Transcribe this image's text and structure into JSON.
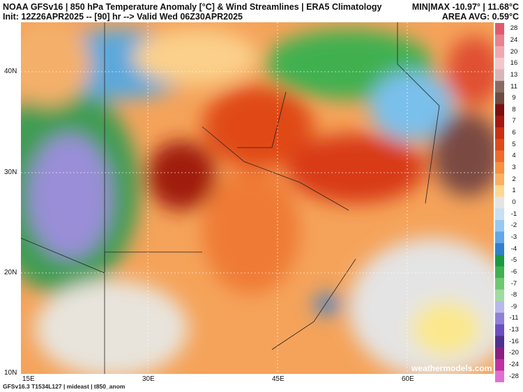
{
  "header": {
    "title_line1": "NOAA GFSv16 | 850 hPa Temperature Anomaly [°C] & Wind Streamlines | ERA5 Climatology",
    "title_line2": "Init: 12Z26APR2025 -- [90] hr --> Valid Wed 06Z30APR2025",
    "minmax": "MIN|MAX -10.97° | 11.68°C",
    "area_avg": "AREA AVG: 0.59°C"
  },
  "map": {
    "lat_labels": [
      "40N",
      "30N",
      "20N",
      "10N"
    ],
    "lon_labels": [
      "15E",
      "30E",
      "45E",
      "60E"
    ]
  },
  "colorbar": {
    "labels": [
      28,
      24,
      20,
      16,
      13,
      11,
      9,
      8,
      7,
      6,
      5,
      4,
      3,
      2,
      1,
      0,
      -1,
      -2,
      -3,
      -4,
      -5,
      -6,
      -7,
      -8,
      -9,
      -11,
      -13,
      -16,
      -20,
      -24,
      -28
    ],
    "colors": [
      "#e05a6e",
      "#e8828f",
      "#f0a8b0",
      "#f4c6cc",
      "#d8b4b8",
      "#8a6a62",
      "#6e4a42",
      "#7a1010",
      "#a01a10",
      "#c83010",
      "#e04a18",
      "#f06a28",
      "#f89040",
      "#fbb060",
      "#fdd890",
      "#e4e4e4",
      "#c8e0f0",
      "#98c8f0",
      "#60a8e8",
      "#3080d0",
      "#1a9a40",
      "#40b050",
      "#70c870",
      "#a0dca0",
      "#b8b8ec",
      "#9080d8",
      "#6a50c0",
      "#503090",
      "#8a2080",
      "#c030a0",
      "#e070d0"
    ]
  },
  "footer": {
    "left": "GFSv16.3 T1534L127 | mideast | t850_anom",
    "watermark": "weathermodels.com"
  }
}
